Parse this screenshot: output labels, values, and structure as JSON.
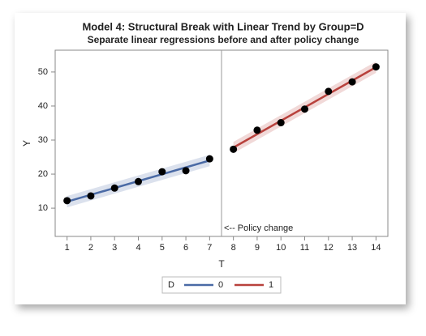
{
  "chart_data": {
    "type": "scatter",
    "title": "Model 4: Structural Break with Linear Trend by Group=D",
    "subtitle": "Separate linear regressions before and after policy change",
    "x_label": "T",
    "y_label": "Y",
    "xlim": [
      0.5,
      14.5
    ],
    "ylim": [
      1.7,
      56.4
    ],
    "xticks": [
      1,
      2,
      3,
      4,
      5,
      6,
      7,
      8,
      9,
      10,
      11,
      12,
      13,
      14
    ],
    "yticks": [
      10,
      20,
      30,
      40,
      50
    ],
    "grid": false,
    "points": {
      "color": "#000000",
      "x": [
        1,
        2,
        3,
        4,
        5,
        6,
        7,
        8,
        9,
        10,
        11,
        12,
        13,
        14
      ],
      "y": [
        12.2,
        13.6,
        15.9,
        17.8,
        20.7,
        21.0,
        24.5,
        27.3,
        32.9,
        35.1,
        39.1,
        44.3,
        47.1,
        51.5
      ]
    },
    "series": [
      {
        "name": "0",
        "color": "#4a6aa5",
        "x": [
          1,
          7
        ],
        "values": [
          11.9,
          24.0
        ]
      },
      {
        "name": "1",
        "color": "#b8413c",
        "x": [
          8,
          14
        ],
        "values": [
          27.8,
          51.4
        ]
      }
    ],
    "reference_line": {
      "x": 7.5,
      "label": "<-- Policy change"
    },
    "legend_title": "D"
  }
}
